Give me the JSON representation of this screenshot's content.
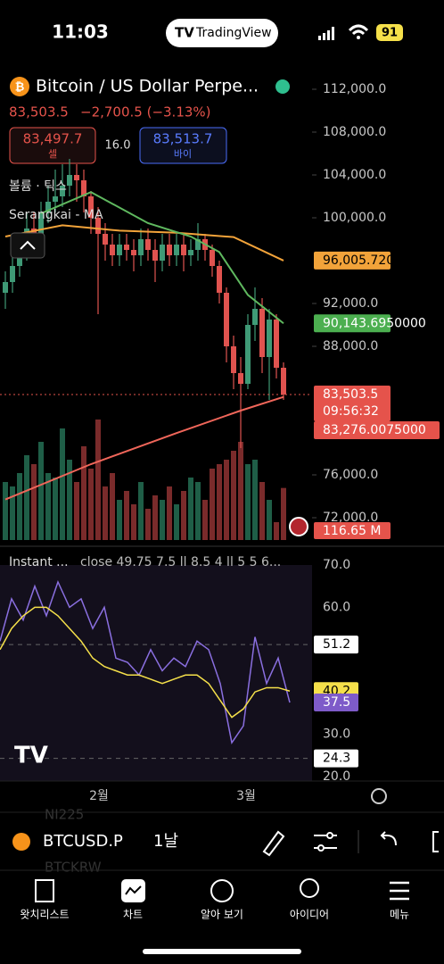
{
  "status": {
    "time": "11:03",
    "app": "TradingView",
    "battery": "91"
  },
  "header": {
    "symbol_title": "Bitcoin / US Dollar Perpe...",
    "last": "83,503.5",
    "change": "−2,700.5 (−3.13%)",
    "sell_price": "83,497.7",
    "sell_label": "셀",
    "spread": "16.0",
    "buy_price": "83,513.7",
    "buy_label": "바이",
    "volume_label": "볼륨 · 틱스",
    "ma_label": "Serangkai - MA"
  },
  "chart": {
    "price_ticks": [
      {
        "value": 112000,
        "label": "112,000.0"
      },
      {
        "value": 108000,
        "label": "108,000.0"
      },
      {
        "value": 104000,
        "label": "104,000.0"
      },
      {
        "value": 100000,
        "label": "100,000.0"
      },
      {
        "value": 92000,
        "label": "92,000.0"
      },
      {
        "value": 88000,
        "label": "88,000.0"
      },
      {
        "value": 76000,
        "label": "76,000.0"
      },
      {
        "value": 72000,
        "label": "72,000.0"
      }
    ],
    "candles": {
      "open": [
        93000,
        94000,
        95500,
        97000,
        99000,
        98000,
        100500,
        101500,
        102000,
        103000,
        104000,
        103500,
        102000,
        100000,
        98500,
        97500,
        96500,
        97500,
        97000,
        96500,
        98000,
        97000,
        96000,
        97500,
        96500,
        97500,
        96500,
        97000,
        98000,
        97000,
        95500,
        93000,
        88000,
        85500,
        84500,
        90000,
        91500,
        87000,
        90500,
        86000
      ],
      "high": [
        95000,
        96500,
        98000,
        100500,
        100500,
        101500,
        103000,
        104500,
        105000,
        105500,
        105000,
        104500,
        102500,
        101000,
        99500,
        98500,
        98500,
        98500,
        98000,
        99000,
        99000,
        98000,
        98500,
        98500,
        98500,
        98500,
        98000,
        99500,
        98500,
        97500,
        96000,
        93500,
        89000,
        87000,
        91000,
        93500,
        92500,
        91500,
        91000,
        86500
      ],
      "low": [
        91500,
        93000,
        94500,
        96000,
        97000,
        97500,
        99500,
        100500,
        101000,
        102000,
        101500,
        100500,
        98500,
        91000,
        96000,
        95500,
        95500,
        96000,
        95000,
        95500,
        96000,
        94000,
        95000,
        95500,
        95500,
        95000,
        95500,
        96000,
        96000,
        94500,
        92000,
        86500,
        84000,
        78500,
        84000,
        88500,
        85500,
        83000,
        85000,
        83000
      ],
      "close": [
        94000,
        95500,
        97000,
        99000,
        98000,
        100500,
        101500,
        102000,
        103000,
        104000,
        103500,
        102000,
        100000,
        98500,
        97500,
        96500,
        97500,
        97000,
        96500,
        98000,
        97000,
        96000,
        97500,
        96500,
        97500,
        96500,
        97000,
        98000,
        97000,
        95500,
        93000,
        88000,
        85500,
        84500,
        90000,
        91500,
        87000,
        90500,
        86000,
        83500
      ]
    },
    "volume": [
      130,
      120,
      150,
      190,
      170,
      220,
      150,
      140,
      250,
      180,
      130,
      210,
      160,
      270,
      120,
      150,
      90,
      110,
      80,
      130,
      70,
      100,
      90,
      120,
      80,
      110,
      140,
      130,
      90,
      160,
      170,
      180,
      200,
      220,
      170,
      180,
      130,
      90,
      40,
      116.65
    ],
    "ma_lines": [
      {
        "color": "#f2a33a",
        "x": [
          0,
          8,
          16,
          24,
          32,
          39
        ],
        "values": [
          98250,
          99300,
          98800,
          98600,
          98200,
          96005.72
        ]
      },
      {
        "color": "#5fb85f",
        "x": [
          5,
          12,
          20,
          26,
          30,
          34,
          39
        ],
        "values": [
          100400,
          102400,
          99500,
          98250,
          96800,
          92800,
          90143.695
        ]
      },
      {
        "color": "#f0665a",
        "x": [
          0,
          12,
          24,
          33,
          39
        ],
        "values": [
          73700,
          77000,
          79900,
          82000,
          83276.0075
        ]
      }
    ],
    "price_badges": [
      {
        "value": 96005.72,
        "label": "96,005.7200000",
        "color": "#f2a33a"
      },
      {
        "value": 90143.695,
        "label": "90,143.6950000",
        "color": "#4caf50"
      },
      {
        "value": 83503.5,
        "label": "83,503.5",
        "color": "#e5534b"
      },
      {
        "value": 83276.0075,
        "label": "83,276.0075000",
        "color": "#e5534b"
      }
    ],
    "countdown": "09:56:32",
    "volume_badge": {
      "value": 116.65,
      "label": "116.65 M"
    }
  },
  "rsi": {
    "title": "Instant ...",
    "params": "close 49.75 7.5 ll 8.5 4 ll 5 5 6...",
    "ticks": [
      {
        "value": 70,
        "label": "70.0"
      },
      {
        "value": 60,
        "label": "60.0"
      },
      {
        "value": 30,
        "label": "30.0"
      },
      {
        "value": 20,
        "label": "20.0"
      }
    ],
    "purple": [
      52,
      62,
      57,
      65,
      58,
      66,
      60,
      62,
      55,
      60,
      48,
      47,
      44,
      50,
      45,
      48,
      46,
      52,
      50,
      42,
      28,
      32,
      53,
      42,
      48,
      37.5
    ],
    "yellow": [
      50,
      55,
      58,
      60,
      60,
      58,
      55,
      52,
      48,
      46,
      45,
      44,
      44,
      43,
      42,
      43,
      44,
      44,
      42,
      38,
      34,
      36,
      40,
      41,
      41,
      40.2
    ],
    "badges": [
      {
        "value": 51.2,
        "label": "51.2",
        "color": "#fff"
      },
      {
        "value": 40.2,
        "label": "40.2",
        "color": "#f5e04a"
      },
      {
        "value": 37.5,
        "label": "37.5",
        "color": "#7e5bc9"
      },
      {
        "value": 24.3,
        "label": "24.3",
        "color": "#fff"
      }
    ]
  },
  "xaxis": [
    "2월",
    "3월"
  ],
  "toolbar": {
    "ghost_top": "NI225",
    "symbol": "BTCUSD.P",
    "interval": "1날",
    "ghost_bottom": "BTCKRW"
  },
  "nav": [
    "왓치리스트",
    "차트",
    "알아 보기",
    "아이디어",
    "메뉴"
  ]
}
